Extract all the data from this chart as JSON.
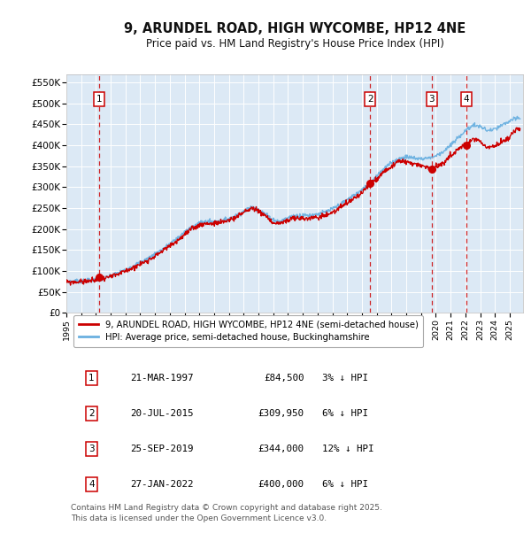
{
  "title": "9, ARUNDEL ROAD, HIGH WYCOMBE, HP12 4NE",
  "subtitle": "Price paid vs. HM Land Registry's House Price Index (HPI)",
  "ylabel_ticks": [
    "£0",
    "£50K",
    "£100K",
    "£150K",
    "£200K",
    "£250K",
    "£300K",
    "£350K",
    "£400K",
    "£450K",
    "£500K",
    "£550K"
  ],
  "ytick_values": [
    0,
    50000,
    100000,
    150000,
    200000,
    250000,
    300000,
    350000,
    400000,
    450000,
    500000,
    550000
  ],
  "ylim": [
    0,
    570000
  ],
  "xlim_start": 1995.0,
  "xlim_end": 2025.9,
  "bg_color": "#dce9f5",
  "grid_color": "#ffffff",
  "hpi_line_color": "#6ab0e0",
  "price_line_color": "#cc0000",
  "sale_dot_color": "#cc0000",
  "dashed_line_color": "#cc0000",
  "annotation_box_color": "#cc0000",
  "annotation_text_color": "#000000",
  "sales": [
    {
      "date_num": 1997.22,
      "price": 84500,
      "label": "1"
    },
    {
      "date_num": 2015.55,
      "price": 309950,
      "label": "2"
    },
    {
      "date_num": 2019.73,
      "price": 344000,
      "label": "3"
    },
    {
      "date_num": 2022.07,
      "price": 400000,
      "label": "4"
    }
  ],
  "legend_property_label": "9, ARUNDEL ROAD, HIGH WYCOMBE, HP12 4NE (semi-detached house)",
  "legend_hpi_label": "HPI: Average price, semi-detached house, Buckinghamshire",
  "table_rows": [
    {
      "num": "1",
      "date": "21-MAR-1997",
      "price": "£84,500",
      "hpi": "3% ↓ HPI"
    },
    {
      "num": "2",
      "date": "20-JUL-2015",
      "price": "£309,950",
      "hpi": "6% ↓ HPI"
    },
    {
      "num": "3",
      "date": "25-SEP-2019",
      "price": "£344,000",
      "hpi": "12% ↓ HPI"
    },
    {
      "num": "4",
      "date": "27-JAN-2022",
      "price": "£400,000",
      "hpi": "6% ↓ HPI"
    }
  ],
  "footer": "Contains HM Land Registry data © Crown copyright and database right 2025.\nThis data is licensed under the Open Government Licence v3.0."
}
